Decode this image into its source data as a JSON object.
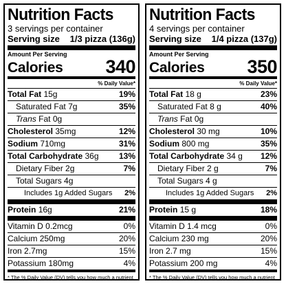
{
  "panels": [
    {
      "title": "Nutrition Facts",
      "servings": "3 servings per container",
      "serving_size_label": "Serving size",
      "serving_size_value": "1/3 pizza (136g)",
      "amount_per_serving": "Amount Per Serving",
      "calories_label": "Calories",
      "calories_value": "340",
      "dv_header": "% Daily Value*",
      "rows": {
        "total_fat": {
          "label": "Total Fat",
          "amount": "15g",
          "dv": "19%"
        },
        "sat_fat": {
          "label": "Saturated Fat",
          "amount": "7g",
          "dv": "35%"
        },
        "trans_fat": {
          "label": "Trans",
          "amount": "Fat 0g"
        },
        "cholesterol": {
          "label": "Cholesterol",
          "amount": "35mg",
          "dv": "12%"
        },
        "sodium": {
          "label": "Sodium",
          "amount": "710mg",
          "dv": "31%"
        },
        "carb": {
          "label": "Total Carbohydrate",
          "amount": "36g",
          "dv": "13%"
        },
        "fiber": {
          "label": "Dietary Fiber",
          "amount": "2g",
          "dv": "7%"
        },
        "sugars": {
          "label": "Total Sugars",
          "amount": "4g"
        },
        "added_sugars": {
          "label": "Includes 1g Added Sugars",
          "dv": "2%"
        },
        "protein": {
          "label": "Protein",
          "amount": "16g",
          "dv": "21%"
        },
        "vit_d": {
          "label": "Vitamin D",
          "amount": "0.2mcg",
          "dv": "0%"
        },
        "calcium": {
          "label": "Calcium",
          "amount": "250mg",
          "dv": "20%"
        },
        "iron": {
          "label": "Iron",
          "amount": "2.7mg",
          "dv": "15%"
        },
        "potassium": {
          "label": "Potassium",
          "amount": "180mg",
          "dv": "4%"
        }
      },
      "footnote_star": "*",
      "footnote": "The % Daily Value (DV) tells you how much a nutrient in a serving of food contributes to a daily diet. 2,000 calories a day is used for general nutrition advice."
    },
    {
      "title": "Nutrition Facts",
      "servings": "4 servings per container",
      "serving_size_label": "Serving size",
      "serving_size_value": "1/4 pizza (137g)",
      "amount_per_serving": "Amount Per Serving",
      "calories_label": "Calories",
      "calories_value": "350",
      "dv_header": "% Daily Value*",
      "rows": {
        "total_fat": {
          "label": "Total Fat",
          "amount": "18 g",
          "dv": "23%"
        },
        "sat_fat": {
          "label": "Saturated Fat",
          "amount": "8 g",
          "dv": "40%"
        },
        "trans_fat": {
          "label": "Trans",
          "amount": "Fat 0g"
        },
        "cholesterol": {
          "label": "Cholesterol",
          "amount": "30 mg",
          "dv": "10%"
        },
        "sodium": {
          "label": "Sodium",
          "amount": "800 mg",
          "dv": "35%"
        },
        "carb": {
          "label": "Total Carbohydrate",
          "amount": "34 g",
          "dv": "12%"
        },
        "fiber": {
          "label": "Dietary Fiber",
          "amount": "2 g",
          "dv": "7%"
        },
        "sugars": {
          "label": "Total Sugars",
          "amount": "4 g"
        },
        "added_sugars": {
          "label": "Includes 1g Added Sugars",
          "dv": "2%"
        },
        "protein": {
          "label": "Protein",
          "amount": "15 g",
          "dv": "18%"
        },
        "vit_d": {
          "label": "Vitamin D",
          "amount": "1.4 mcg",
          "dv": "0%"
        },
        "calcium": {
          "label": "Calcium",
          "amount": "230 mg",
          "dv": "20%"
        },
        "iron": {
          "label": "Iron",
          "amount": "2.7 mg",
          "dv": "15%"
        },
        "potassium": {
          "label": "Potassium",
          "amount": "200 mg",
          "dv": "4%"
        }
      },
      "footnote_star": "*",
      "footnote": "The % Daily Value (DV) tells you how much a nutrient in a serving of food contributes to a daily diet. 2,000 calories a day is used for general nutrition advice."
    }
  ]
}
